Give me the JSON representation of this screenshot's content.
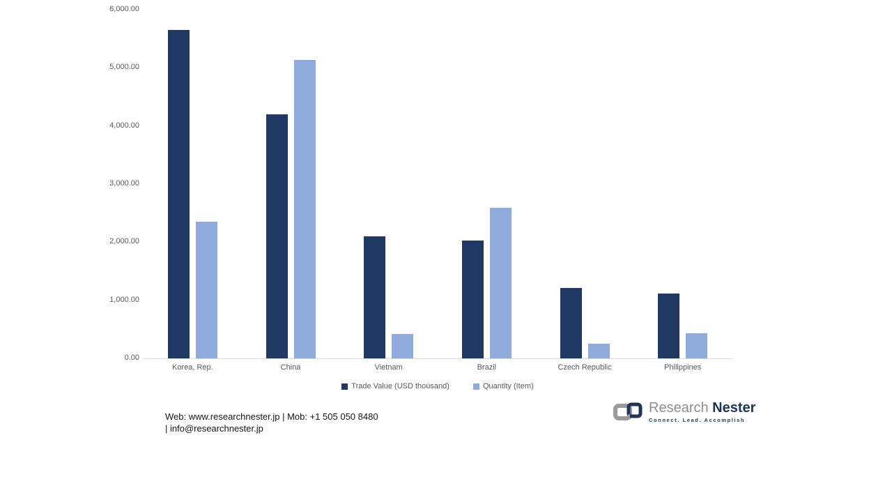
{
  "chart_data": {
    "type": "bar",
    "title": "",
    "xlabel": "",
    "ylabel": "",
    "grid": false,
    "legend_position": "bottom",
    "ylim": [
      0,
      6000
    ],
    "ytick_step": 1000,
    "ytick_labels": [
      "0.00",
      "1,000.00",
      "2,000.00",
      "3,000.00",
      "4,000.00",
      "5,000.00",
      "6,000.00"
    ],
    "categories": [
      "Korea, Rep.",
      "China",
      "Vietnam",
      "Brazil",
      "Czech Republic",
      "Philippines"
    ],
    "series": [
      {
        "name": "Trade Value (USD thousand)",
        "slug": "trade-value",
        "color": "#203864",
        "values": [
          5650,
          4200,
          2100,
          2030,
          1210,
          1120
        ]
      },
      {
        "name": "Quantity (Item)",
        "slug": "quantity",
        "color": "#8faadc",
        "values": [
          2350,
          5140,
          420,
          2590,
          250,
          430
        ]
      }
    ]
  },
  "footer": {
    "line1": "Web: www.researchnester.jp | Mob: +1 505 050 8480",
    "line2": "| info@researchnester.jp"
  },
  "logo": {
    "name_part1": "Research",
    "name_part2": "Nester",
    "tagline": "Connect. Lead. Accomplish",
    "gray_color": "#9a9a9a",
    "navy_color": "#1e3557"
  },
  "colors": {
    "axis_line": "#d9d9d9",
    "tick_text": "#595959",
    "background": "#ffffff"
  }
}
